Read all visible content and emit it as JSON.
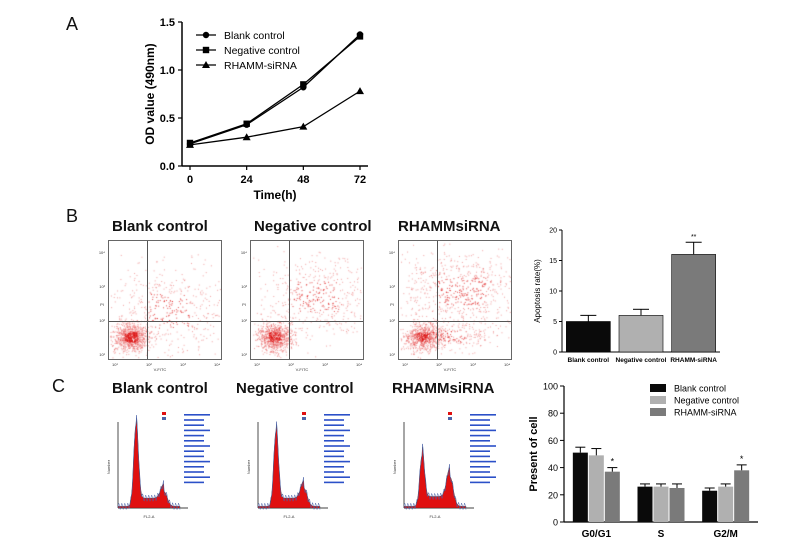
{
  "figure": {
    "panels": [
      "A",
      "B",
      "C"
    ]
  },
  "panel_b": {
    "titles": [
      "Blank control",
      "Negative control",
      "RHAMMsiRNA"
    ],
    "flow_axis_x": "V-FITC",
    "flow_axis_y": "PI",
    "decades": [
      "10¹",
      "10²",
      "10³",
      "10⁴"
    ]
  },
  "panel_c": {
    "titles": [
      "Blank control",
      "Negative control",
      "RHAMMsiRNA"
    ],
    "hist_axis_x": "FL2-A",
    "hist_axis_y": "Number"
  },
  "chart_data": [
    {
      "id": "A",
      "type": "line",
      "title": "",
      "xlabel": "Time(h)",
      "ylabel": "OD value (490nm)",
      "x": [
        0,
        24,
        48,
        72
      ],
      "xlim": [
        0,
        72
      ],
      "ylim": [
        0,
        1.5
      ],
      "yticks": [
        "0.0",
        "0.5",
        "1.0",
        "1.5"
      ],
      "xticks": [
        "0",
        "24",
        "48",
        "72"
      ],
      "series": [
        {
          "name": "Blank control",
          "marker": "circle",
          "values": [
            0.23,
            0.43,
            0.82,
            1.37
          ]
        },
        {
          "name": "Negative control",
          "marker": "square",
          "values": [
            0.24,
            0.44,
            0.85,
            1.35
          ]
        },
        {
          "name": "RHAMM-siRNA",
          "marker": "triangle",
          "values": [
            0.22,
            0.3,
            0.41,
            0.78
          ]
        }
      ],
      "legend": "top-left"
    },
    {
      "id": "B",
      "type": "bar",
      "ylabel": "Apoptosis rate(%)",
      "ylim": [
        0,
        20
      ],
      "yticks": [
        "0",
        "5",
        "10",
        "15",
        "20"
      ],
      "categories": [
        "Blank control",
        "Negative control",
        "RHAMM-siRNA"
      ],
      "values": [
        5.0,
        6.0,
        16.0
      ],
      "errors": [
        1.0,
        1.0,
        2.0
      ],
      "colors": [
        "#0a0a0a",
        "#b0b0b0",
        "#7a7a7a"
      ],
      "annotations": [
        "",
        "",
        "**"
      ]
    },
    {
      "id": "C",
      "type": "bar",
      "ylabel": "Present of cell",
      "ylim": [
        0,
        100
      ],
      "yticks": [
        "0",
        "20",
        "40",
        "60",
        "80",
        "100"
      ],
      "categories": [
        "G0/G1",
        "S",
        "G2/M"
      ],
      "series": [
        {
          "name": "Blank control",
          "color": "#0a0a0a",
          "values": [
            51,
            26,
            23
          ],
          "errors": [
            4,
            2,
            2
          ]
        },
        {
          "name": "Negative control",
          "color": "#b0b0b0",
          "values": [
            49,
            26,
            26
          ],
          "errors": [
            5,
            2,
            2
          ]
        },
        {
          "name": "RHAMM-siRNA",
          "color": "#7a7a7a",
          "values": [
            37,
            25,
            38
          ],
          "errors": [
            3,
            3,
            4
          ]
        }
      ],
      "annotations": [
        "*",
        "",
        "*"
      ],
      "legend": "top-right"
    }
  ]
}
